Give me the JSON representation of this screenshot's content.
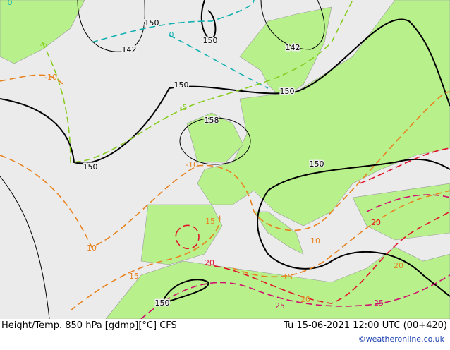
{
  "footer": {
    "title": "Height/Temp. 850 hPa [gdmp][°C] CFS",
    "datetime": "Tu 15-06-2021 12:00 UTC (00+420)",
    "copyright": "©weatheronline.co.uk"
  },
  "contour_labels": {
    "height": [
      "150",
      "150",
      "142",
      "142",
      "150",
      "150",
      "158",
      "150",
      "150",
      "150"
    ],
    "temperature": [
      "0",
      "-5",
      "0",
      "-10",
      "-5",
      "-10",
      "15",
      "10",
      "15",
      "20",
      "15",
      "20",
      "25",
      "20",
      "20",
      "25",
      "10"
    ]
  }
}
